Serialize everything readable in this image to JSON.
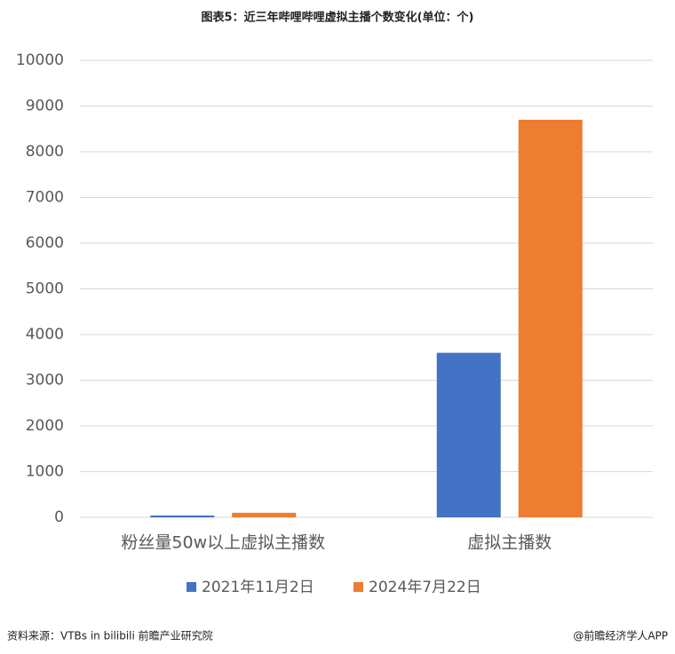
{
  "chart_data": {
    "type": "bar",
    "title": "图表5：近三年哔哩哔哩虚拟主播个数变化(单位：个)",
    "categories": [
      "粉丝量50w以上虚拟主播数",
      "虚拟主播数"
    ],
    "series": [
      {
        "name": "2021年11月2日",
        "color": "#4472c4",
        "values": [
          40,
          3600
        ]
      },
      {
        "name": "2024年7月22日",
        "color": "#ed7d31",
        "values": [
          100,
          8700
        ]
      }
    ],
    "ylim": [
      0,
      10000
    ],
    "yticks": [
      0,
      1000,
      2000,
      3000,
      4000,
      5000,
      6000,
      7000,
      8000,
      9000,
      10000
    ],
    "grid": true,
    "legend": "bottom"
  },
  "source": "资料来源：VTBs in bilibili 前瞻产业研究院",
  "credit": "@前瞻经济学人APP"
}
